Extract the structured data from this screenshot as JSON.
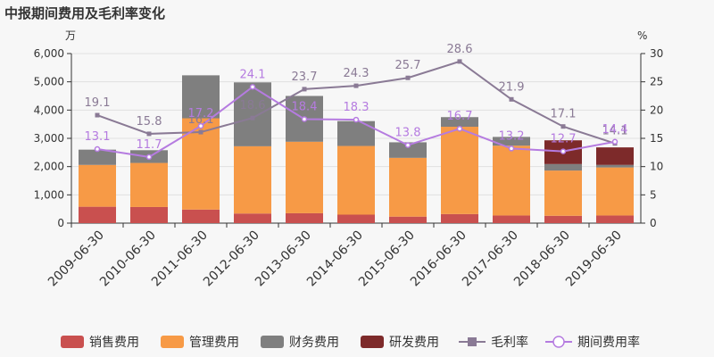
{
  "chart_data": {
    "type": "bar",
    "title": "中报期间费用及毛利率变化",
    "y_left_unit": "万",
    "y_right_unit": "%",
    "ylim_left": [
      0,
      6000
    ],
    "ylim_right": [
      0,
      30
    ],
    "y_left_ticks": [
      "0",
      "1,000",
      "2,000",
      "3,000",
      "4,000",
      "5,000",
      "6,000"
    ],
    "y_right_ticks": [
      "0",
      "5",
      "10",
      "15",
      "20",
      "25",
      "30"
    ],
    "grid": true,
    "legend_position": "bottom",
    "categories": [
      "2009-06-30",
      "2010-06-30",
      "2011-06-30",
      "2012-06-30",
      "2013-06-30",
      "2014-06-30",
      "2015-06-30",
      "2016-06-30",
      "2017-06-30",
      "2018-06-30",
      "2019-06-30"
    ],
    "series": [
      {
        "name": "销售费用",
        "type": "bar",
        "axis": "left",
        "color": "#c9504f",
        "values": [
          580,
          570,
          480,
          340,
          350,
          300,
          230,
          320,
          270,
          260,
          270
        ]
      },
      {
        "name": "管理费用",
        "type": "bar",
        "axis": "left",
        "color": "#f79a46",
        "values": [
          1480,
          1560,
          3230,
          2380,
          2530,
          2430,
          2080,
          3090,
          2470,
          1600,
          1700
        ]
      },
      {
        "name": "财务费用",
        "type": "bar",
        "axis": "left",
        "color": "#7f7f7f",
        "values": [
          540,
          450,
          1520,
          2260,
          1620,
          880,
          550,
          340,
          310,
          230,
          90
        ]
      },
      {
        "name": "研发费用",
        "type": "bar",
        "axis": "left",
        "color": "#7d2a2a",
        "values": [
          0,
          0,
          0,
          0,
          0,
          0,
          0,
          0,
          0,
          840,
          620
        ]
      },
      {
        "name": "毛利率",
        "type": "line",
        "axis": "right",
        "color": "#8a7a95",
        "values": [
          19.1,
          15.8,
          16.1,
          18.6,
          23.7,
          24.3,
          25.7,
          28.6,
          21.9,
          17.1,
          14.1
        ],
        "labels": [
          "19.1",
          "15.8",
          "16.1",
          "18.6",
          "23.7",
          "24.3",
          "25.7",
          "28.6",
          "21.9",
          "17.1",
          "14.1"
        ]
      },
      {
        "name": "期间费用率",
        "type": "line",
        "axis": "right",
        "color": "#b57be0",
        "values": [
          13.1,
          11.7,
          17.2,
          24.1,
          18.4,
          18.3,
          13.8,
          16.7,
          13.2,
          12.7,
          14.4
        ],
        "labels": [
          "13.1",
          "11.7",
          "17.2",
          "24.1",
          "18.4",
          "18.3",
          "13.8",
          "16.7",
          "13.2",
          "12.7",
          "14.4"
        ]
      }
    ]
  }
}
